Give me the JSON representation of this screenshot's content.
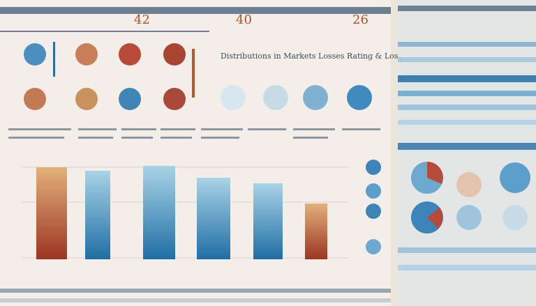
{
  "header": {
    "title": "Distributions in Markets Losses Rating & Loss Reciprocity",
    "numbers": [
      "42",
      "40",
      "26"
    ]
  }
}
